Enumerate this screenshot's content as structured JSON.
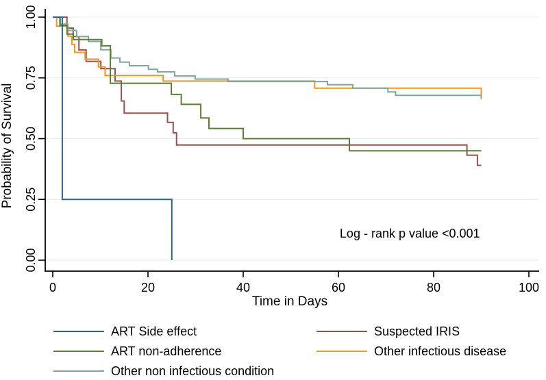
{
  "chart_data": {
    "type": "line",
    "subtype": "kaplan_meier_step",
    "title": "",
    "xlabel": "Time in Days",
    "ylabel": "Probability of Survival",
    "xlim": [
      0,
      100
    ],
    "ylim": [
      0.0,
      1.0
    ],
    "xticks": [
      "0",
      "20",
      "40",
      "60",
      "80",
      "100"
    ],
    "xtick_values": [
      0,
      20,
      40,
      60,
      80,
      100
    ],
    "yticks": [
      "0.00",
      "0.25",
      "0.50",
      "0.75",
      "1.00"
    ],
    "ytick_values": [
      0,
      0.25,
      0.5,
      0.75,
      1
    ],
    "grid": true,
    "legend_position": "below",
    "annotation": {
      "text": "Log - rank p value <0.001",
      "x_day": 75,
      "y_prob": 0.11
    },
    "colors": {
      "axis": "#000000",
      "gridline": "#e6f1ee",
      "background": "#ffffff"
    },
    "series": [
      {
        "name": "ART Side effect",
        "color": "#2e6484",
        "points": [
          [
            0,
            1.0
          ],
          [
            2,
            0.25
          ],
          [
            25,
            0.0
          ]
        ]
      },
      {
        "name": "Suspected IRIS",
        "color": "#99514e",
        "points": [
          [
            0,
            1.0
          ],
          [
            3,
            0.955
          ],
          [
            4.3,
            0.92
          ],
          [
            5.5,
            0.865
          ],
          [
            7,
            0.818
          ],
          [
            10.1,
            0.788
          ],
          [
            13.1,
            0.737
          ],
          [
            14.4,
            0.655
          ],
          [
            15,
            0.605
          ],
          [
            24.1,
            0.567
          ],
          [
            25.3,
            0.524
          ],
          [
            26,
            0.474
          ],
          [
            87,
            0.432
          ],
          [
            89.2,
            0.39
          ],
          [
            90,
            0.39
          ]
        ]
      },
      {
        "name": "ART non-adherence",
        "color": "#5a7f33",
        "points": [
          [
            0,
            1.0
          ],
          [
            1.5,
            0.965
          ],
          [
            3,
            0.93
          ],
          [
            4.3,
            0.908
          ],
          [
            10.3,
            0.882
          ],
          [
            12.1,
            0.728
          ],
          [
            24.9,
            0.682
          ],
          [
            27,
            0.641
          ],
          [
            31.1,
            0.585
          ],
          [
            32.8,
            0.542
          ],
          [
            40,
            0.5
          ],
          [
            62.3,
            0.45
          ],
          [
            90,
            0.45
          ]
        ]
      },
      {
        "name": "Other infectious disease",
        "color": "#f5941e",
        "points": [
          [
            0,
            1.0
          ],
          [
            0.8,
            0.963
          ],
          [
            3.2,
            0.922
          ],
          [
            4,
            0.888
          ],
          [
            4.6,
            0.855
          ],
          [
            6.8,
            0.827
          ],
          [
            9.6,
            0.795
          ],
          [
            11,
            0.76
          ],
          [
            23.2,
            0.737
          ],
          [
            55,
            0.708
          ],
          [
            90,
            0.663
          ]
        ]
      },
      {
        "name": "Other non infectious condition",
        "color": "#7fa696",
        "points": [
          [
            0,
            1.0
          ],
          [
            1.6,
            0.971
          ],
          [
            3.2,
            0.945
          ],
          [
            5,
            0.92
          ],
          [
            7.5,
            0.9
          ],
          [
            10.1,
            0.866
          ],
          [
            12.2,
            0.832
          ],
          [
            14.1,
            0.815
          ],
          [
            16.1,
            0.8
          ],
          [
            20.1,
            0.785
          ],
          [
            22,
            0.775
          ],
          [
            25.6,
            0.758
          ],
          [
            29.9,
            0.745
          ],
          [
            36.8,
            0.735
          ],
          [
            57.7,
            0.722
          ],
          [
            63,
            0.708
          ],
          [
            70.4,
            0.692
          ],
          [
            72,
            0.678
          ],
          [
            90,
            0.668
          ]
        ]
      }
    ],
    "draw_order": [
      1,
      3,
      4,
      2,
      0
    ]
  }
}
